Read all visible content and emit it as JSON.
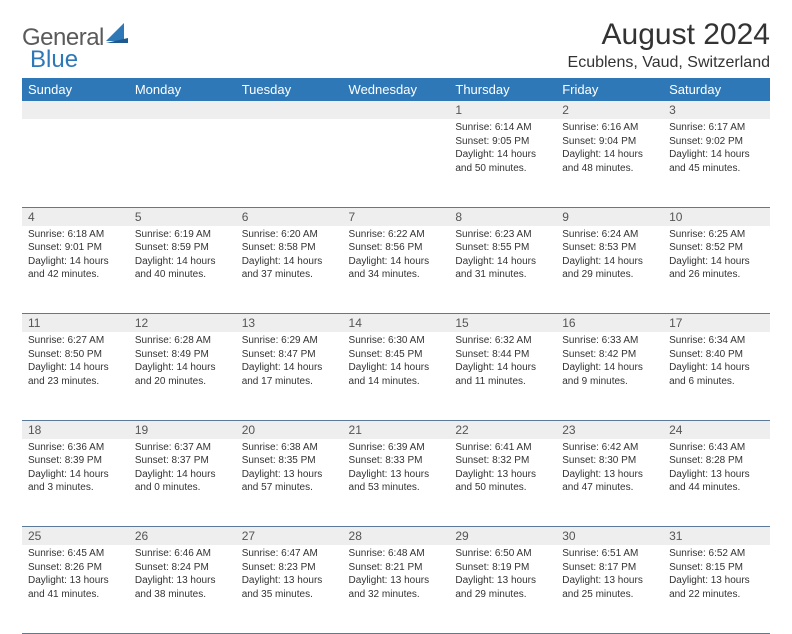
{
  "logo": {
    "text_a": "General",
    "text_b": "Blue"
  },
  "title": "August 2024",
  "location": "Ecublens, Vaud, Switzerland",
  "colors": {
    "header_bg": "#2f78b7",
    "header_text": "#ffffff",
    "daynum_bg": "#eeeeee",
    "row_border": "#5a7a9a",
    "text": "#333333",
    "logo_gray": "#5a5a5a",
    "logo_blue": "#2f78b7"
  },
  "day_headers": [
    "Sunday",
    "Monday",
    "Tuesday",
    "Wednesday",
    "Thursday",
    "Friday",
    "Saturday"
  ],
  "weeks": [
    {
      "nums": [
        "",
        "",
        "",
        "",
        "1",
        "2",
        "3"
      ],
      "cells": [
        {},
        {},
        {},
        {},
        {
          "sunrise": "Sunrise: 6:14 AM",
          "sunset": "Sunset: 9:05 PM",
          "day1": "Daylight: 14 hours",
          "day2": "and 50 minutes."
        },
        {
          "sunrise": "Sunrise: 6:16 AM",
          "sunset": "Sunset: 9:04 PM",
          "day1": "Daylight: 14 hours",
          "day2": "and 48 minutes."
        },
        {
          "sunrise": "Sunrise: 6:17 AM",
          "sunset": "Sunset: 9:02 PM",
          "day1": "Daylight: 14 hours",
          "day2": "and 45 minutes."
        }
      ]
    },
    {
      "nums": [
        "4",
        "5",
        "6",
        "7",
        "8",
        "9",
        "10"
      ],
      "cells": [
        {
          "sunrise": "Sunrise: 6:18 AM",
          "sunset": "Sunset: 9:01 PM",
          "day1": "Daylight: 14 hours",
          "day2": "and 42 minutes."
        },
        {
          "sunrise": "Sunrise: 6:19 AM",
          "sunset": "Sunset: 8:59 PM",
          "day1": "Daylight: 14 hours",
          "day2": "and 40 minutes."
        },
        {
          "sunrise": "Sunrise: 6:20 AM",
          "sunset": "Sunset: 8:58 PM",
          "day1": "Daylight: 14 hours",
          "day2": "and 37 minutes."
        },
        {
          "sunrise": "Sunrise: 6:22 AM",
          "sunset": "Sunset: 8:56 PM",
          "day1": "Daylight: 14 hours",
          "day2": "and 34 minutes."
        },
        {
          "sunrise": "Sunrise: 6:23 AM",
          "sunset": "Sunset: 8:55 PM",
          "day1": "Daylight: 14 hours",
          "day2": "and 31 minutes."
        },
        {
          "sunrise": "Sunrise: 6:24 AM",
          "sunset": "Sunset: 8:53 PM",
          "day1": "Daylight: 14 hours",
          "day2": "and 29 minutes."
        },
        {
          "sunrise": "Sunrise: 6:25 AM",
          "sunset": "Sunset: 8:52 PM",
          "day1": "Daylight: 14 hours",
          "day2": "and 26 minutes."
        }
      ]
    },
    {
      "nums": [
        "11",
        "12",
        "13",
        "14",
        "15",
        "16",
        "17"
      ],
      "cells": [
        {
          "sunrise": "Sunrise: 6:27 AM",
          "sunset": "Sunset: 8:50 PM",
          "day1": "Daylight: 14 hours",
          "day2": "and 23 minutes."
        },
        {
          "sunrise": "Sunrise: 6:28 AM",
          "sunset": "Sunset: 8:49 PM",
          "day1": "Daylight: 14 hours",
          "day2": "and 20 minutes."
        },
        {
          "sunrise": "Sunrise: 6:29 AM",
          "sunset": "Sunset: 8:47 PM",
          "day1": "Daylight: 14 hours",
          "day2": "and 17 minutes."
        },
        {
          "sunrise": "Sunrise: 6:30 AM",
          "sunset": "Sunset: 8:45 PM",
          "day1": "Daylight: 14 hours",
          "day2": "and 14 minutes."
        },
        {
          "sunrise": "Sunrise: 6:32 AM",
          "sunset": "Sunset: 8:44 PM",
          "day1": "Daylight: 14 hours",
          "day2": "and 11 minutes."
        },
        {
          "sunrise": "Sunrise: 6:33 AM",
          "sunset": "Sunset: 8:42 PM",
          "day1": "Daylight: 14 hours",
          "day2": "and 9 minutes."
        },
        {
          "sunrise": "Sunrise: 6:34 AM",
          "sunset": "Sunset: 8:40 PM",
          "day1": "Daylight: 14 hours",
          "day2": "and 6 minutes."
        }
      ]
    },
    {
      "nums": [
        "18",
        "19",
        "20",
        "21",
        "22",
        "23",
        "24"
      ],
      "cells": [
        {
          "sunrise": "Sunrise: 6:36 AM",
          "sunset": "Sunset: 8:39 PM",
          "day1": "Daylight: 14 hours",
          "day2": "and 3 minutes."
        },
        {
          "sunrise": "Sunrise: 6:37 AM",
          "sunset": "Sunset: 8:37 PM",
          "day1": "Daylight: 14 hours",
          "day2": "and 0 minutes."
        },
        {
          "sunrise": "Sunrise: 6:38 AM",
          "sunset": "Sunset: 8:35 PM",
          "day1": "Daylight: 13 hours",
          "day2": "and 57 minutes."
        },
        {
          "sunrise": "Sunrise: 6:39 AM",
          "sunset": "Sunset: 8:33 PM",
          "day1": "Daylight: 13 hours",
          "day2": "and 53 minutes."
        },
        {
          "sunrise": "Sunrise: 6:41 AM",
          "sunset": "Sunset: 8:32 PM",
          "day1": "Daylight: 13 hours",
          "day2": "and 50 minutes."
        },
        {
          "sunrise": "Sunrise: 6:42 AM",
          "sunset": "Sunset: 8:30 PM",
          "day1": "Daylight: 13 hours",
          "day2": "and 47 minutes."
        },
        {
          "sunrise": "Sunrise: 6:43 AM",
          "sunset": "Sunset: 8:28 PM",
          "day1": "Daylight: 13 hours",
          "day2": "and 44 minutes."
        }
      ]
    },
    {
      "nums": [
        "25",
        "26",
        "27",
        "28",
        "29",
        "30",
        "31"
      ],
      "cells": [
        {
          "sunrise": "Sunrise: 6:45 AM",
          "sunset": "Sunset: 8:26 PM",
          "day1": "Daylight: 13 hours",
          "day2": "and 41 minutes."
        },
        {
          "sunrise": "Sunrise: 6:46 AM",
          "sunset": "Sunset: 8:24 PM",
          "day1": "Daylight: 13 hours",
          "day2": "and 38 minutes."
        },
        {
          "sunrise": "Sunrise: 6:47 AM",
          "sunset": "Sunset: 8:23 PM",
          "day1": "Daylight: 13 hours",
          "day2": "and 35 minutes."
        },
        {
          "sunrise": "Sunrise: 6:48 AM",
          "sunset": "Sunset: 8:21 PM",
          "day1": "Daylight: 13 hours",
          "day2": "and 32 minutes."
        },
        {
          "sunrise": "Sunrise: 6:50 AM",
          "sunset": "Sunset: 8:19 PM",
          "day1": "Daylight: 13 hours",
          "day2": "and 29 minutes."
        },
        {
          "sunrise": "Sunrise: 6:51 AM",
          "sunset": "Sunset: 8:17 PM",
          "day1": "Daylight: 13 hours",
          "day2": "and 25 minutes."
        },
        {
          "sunrise": "Sunrise: 6:52 AM",
          "sunset": "Sunset: 8:15 PM",
          "day1": "Daylight: 13 hours",
          "day2": "and 22 minutes."
        }
      ]
    }
  ]
}
